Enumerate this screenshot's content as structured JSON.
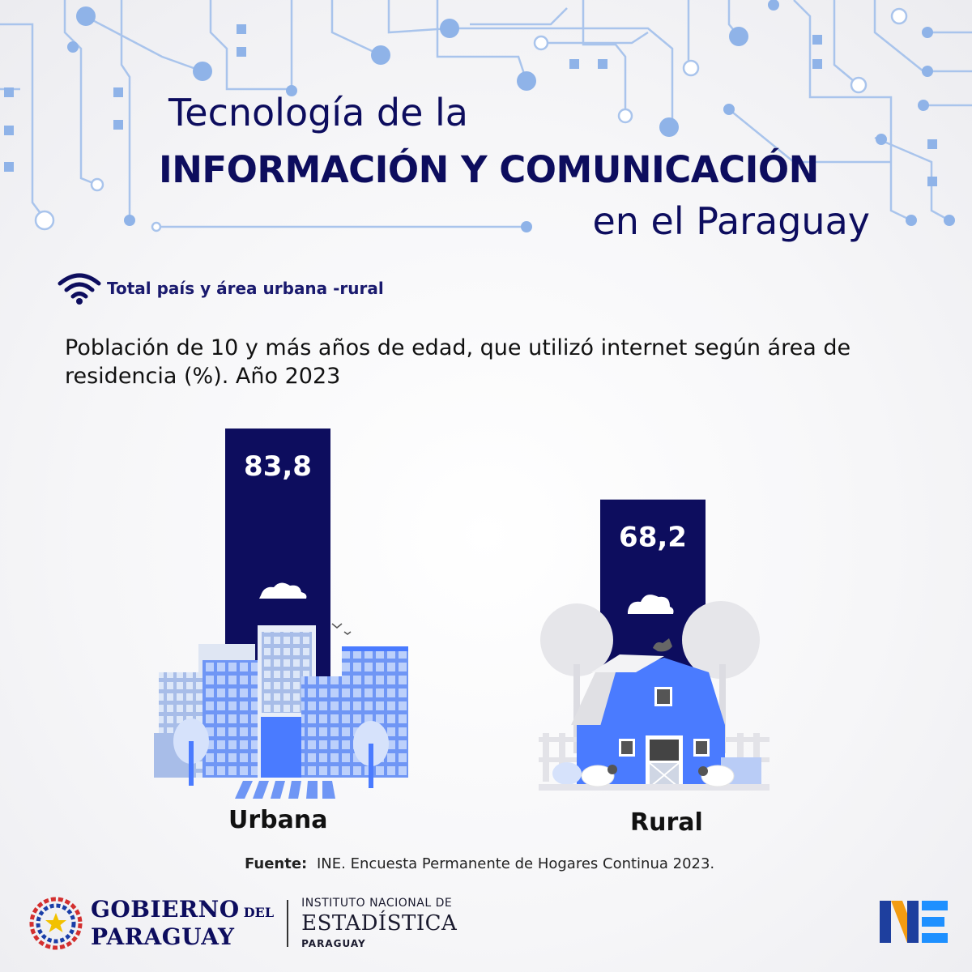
{
  "header": {
    "title_line1": "Tecnología de la",
    "title_line2": "INFORMACIÓN  Y COMUNICACIÓN",
    "title_line3": "en el Paraguay"
  },
  "section": {
    "icon": "wifi-icon",
    "label": "Total país y área urbana -rural"
  },
  "colors": {
    "navy": "#0d0d5e",
    "accent_blue": "#4a7bff",
    "light_blue": "#9cb5e6",
    "circuit": "#8fb3e8"
  },
  "chart_data": {
    "type": "bar",
    "title": "Población de 10 y más años de edad, que utilizó internet según área de residencia (%). Año 2023",
    "categories": [
      "Urbana",
      "Rural"
    ],
    "values": [
      83.8,
      68.2
    ],
    "value_labels": [
      "83,8",
      "68,2"
    ],
    "unit": "%"
  },
  "source": {
    "label": "Fuente:",
    "text": "INE. Encuesta Permanente de Hogares Continua 2023."
  },
  "footer": {
    "gob_line1": "GOBIERNO",
    "gob_del": "DEL",
    "gob_line2": "PARAGUAY",
    "ine_line1": "INSTITUTO NACIONAL DE",
    "ine_line2": "ESTADÍSTICA",
    "ine_line3": "PARAGUAY"
  }
}
